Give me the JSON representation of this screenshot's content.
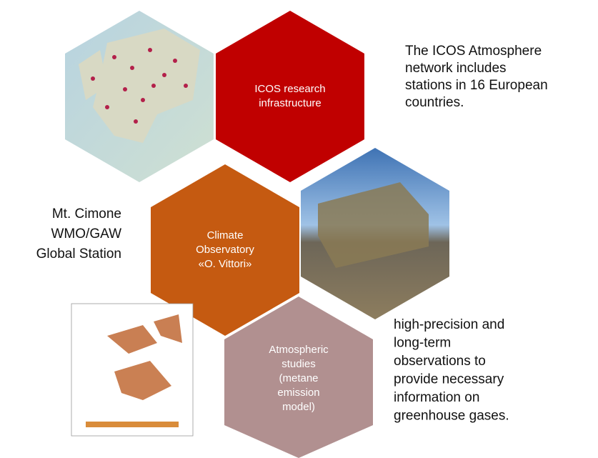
{
  "nodes": [
    {
      "label": [
        "ICOS research",
        "infrastructure"
      ]
    },
    {
      "label": [
        "Climate",
        "Observatory",
        "«O. Vittori»"
      ]
    },
    {
      "label": [
        "Atmospheric",
        "studies",
        "(metane",
        "emission",
        "model)"
      ]
    }
  ],
  "notes": [
    {
      "lines": [
        "The ICOS Atmosphere",
        "network includes",
        "stations in 16 European",
        "countries."
      ]
    },
    {
      "lines": [
        "Mt. Cimone",
        "WMO/GAW",
        "Global Station"
      ]
    },
    {
      "lines": [
        "high-precision and",
        "long-term",
        "observations to",
        "provide necessary",
        "information on",
        "greenhouse gases."
      ]
    }
  ]
}
